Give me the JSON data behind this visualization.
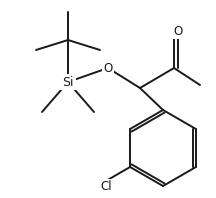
{
  "bg_color": "#ffffff",
  "line_color": "#1a1a1a",
  "line_width": 1.4,
  "font_size": 8.5,
  "label_Si": "Si",
  "label_O": "O",
  "label_Cl": "Cl",
  "label_carbonyl_O": "O"
}
